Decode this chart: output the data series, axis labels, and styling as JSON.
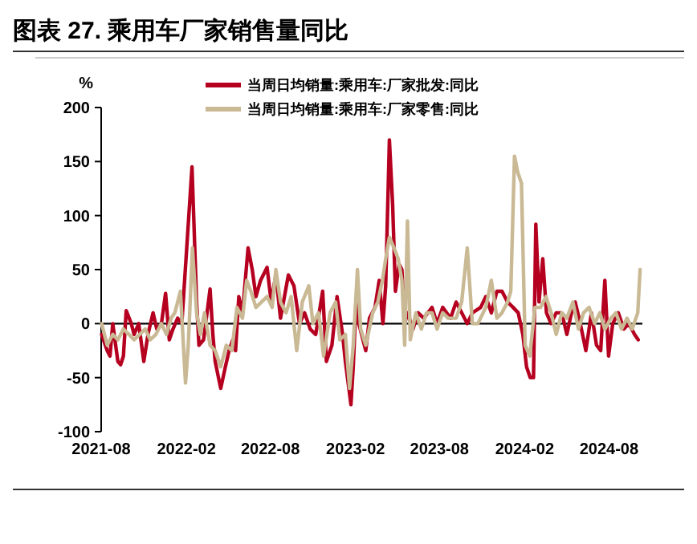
{
  "chart_data": {
    "type": "line",
    "title": "图表 27. 乘用车厂家销售量同比",
    "ylabel": "%",
    "legend": "top",
    "grid": false,
    "line_style": "solid",
    "marker": "none",
    "xlim": [
      "2021-08-01",
      "2024-10-12"
    ],
    "xticks": [
      {
        "value": "2021-08-01",
        "label": "2021-08"
      },
      {
        "value": "2022-02-01",
        "label": "2022-02"
      },
      {
        "value": "2022-08-01",
        "label": "2022-08"
      },
      {
        "value": "2023-02-01",
        "label": "2023-02"
      },
      {
        "value": "2023-08-01",
        "label": "2023-08"
      },
      {
        "value": "2024-02-01",
        "label": "2024-02"
      },
      {
        "value": "2024-08-01",
        "label": "2024-08"
      }
    ],
    "ylim": [
      -100,
      200
    ],
    "yticks": [
      -100,
      -50,
      0,
      50,
      100,
      150,
      200
    ],
    "ref_lines": [
      {
        "axis": "y",
        "value": 0,
        "color": "#000000"
      }
    ],
    "series": [
      {
        "name": "当周日均销量:乘用车:厂家批发:同比",
        "color": "#b5001f",
        "x": [
          "2021-08-02",
          "2021-08-14",
          "2021-08-20",
          "2021-08-26",
          "2021-09-06",
          "2021-09-12",
          "2021-09-18",
          "2021-09-24",
          "2021-10-05",
          "2021-10-11",
          "2021-10-21",
          "2021-11-01",
          "2021-11-10",
          "2021-11-21",
          "2021-11-29",
          "2021-12-09",
          "2021-12-18",
          "2021-12-26",
          "2022-01-03",
          "2022-01-13",
          "2022-01-22",
          "2022-02-13",
          "2022-02-23",
          "2022-02-28",
          "2022-03-10",
          "2022-03-24",
          "2022-03-30",
          "2022-04-04",
          "2022-04-16",
          "2022-04-26",
          "2022-05-04",
          "2022-05-12",
          "2022-05-18",
          "2022-05-25",
          "2022-06-02",
          "2022-06-14",
          "2022-06-23",
          "2022-07-01",
          "2022-07-11",
          "2022-07-25",
          "2022-08-03",
          "2022-08-13",
          "2022-08-23",
          "2022-09-09",
          "2022-09-21",
          "2022-10-03",
          "2022-10-14",
          "2022-10-26",
          "2022-11-07",
          "2022-11-22",
          "2022-11-30",
          "2022-12-12",
          "2022-12-23",
          "2023-01-04",
          "2023-01-10",
          "2023-01-22",
          "2023-01-27",
          "2023-02-02",
          "2023-02-08",
          "2023-02-23",
          "2023-03-03",
          "2023-03-15",
          "2023-03-24",
          "2023-04-01",
          "2023-04-07",
          "2023-04-15",
          "2023-04-22",
          "2023-04-28",
          "2023-05-06",
          "2023-05-12",
          "2023-05-18",
          "2023-05-24",
          "2023-06-05",
          "2023-06-16",
          "2023-06-28",
          "2023-07-16",
          "2023-07-27",
          "2023-08-08",
          "2023-08-25",
          "2023-09-06",
          "2023-09-18",
          "2023-09-30",
          "2023-10-11",
          "2023-10-29",
          "2023-11-09",
          "2023-11-21",
          "2023-12-03",
          "2023-12-14",
          "2023-12-26",
          "2024-01-07",
          "2024-01-18",
          "2024-01-28",
          "2024-02-05",
          "2024-02-13",
          "2024-02-20",
          "2024-02-25",
          "2024-03-03",
          "2024-03-11",
          "2024-03-19",
          "2024-03-29",
          "2024-04-09",
          "2024-04-21",
          "2024-05-02",
          "2024-05-12",
          "2024-05-20",
          "2024-05-31",
          "2024-06-12",
          "2024-06-24",
          "2024-07-05",
          "2024-07-14",
          "2024-07-23",
          "2024-07-31",
          "2024-08-09",
          "2024-08-21",
          "2024-09-02",
          "2024-09-13",
          "2024-09-25",
          "2024-10-03"
        ],
        "values": [
          -10,
          -25,
          -30,
          0,
          -35,
          -38,
          -30,
          12,
          0,
          -10,
          0,
          -35,
          -10,
          10,
          -5,
          0,
          28,
          -15,
          -5,
          5,
          0,
          145,
          20,
          -20,
          -15,
          32,
          -10,
          -35,
          -60,
          -40,
          -25,
          -15,
          -25,
          25,
          10,
          70,
          50,
          25,
          40,
          52,
          20,
          45,
          5,
          45,
          35,
          0,
          10,
          -5,
          -10,
          30,
          -35,
          -20,
          25,
          -10,
          -35,
          -75,
          -40,
          20,
          0,
          -25,
          5,
          15,
          40,
          0,
          35,
          170,
          110,
          30,
          55,
          50,
          0,
          10,
          -5,
          10,
          5,
          15,
          0,
          15,
          5,
          20,
          10,
          0,
          10,
          15,
          25,
          10,
          30,
          30,
          20,
          15,
          10,
          -10,
          -40,
          -50,
          -50,
          92,
          20,
          60,
          10,
          0,
          10,
          10,
          -10,
          10,
          20,
          0,
          -25,
          10,
          -20,
          -25,
          40,
          -30,
          0,
          10,
          -5,
          0,
          -10,
          -15
        ]
      },
      {
        "name": "当周日均销量:乘用车:厂家零售:同比",
        "color": "#c9b994",
        "x": [
          "2021-08-02",
          "2021-08-14",
          "2021-08-26",
          "2021-09-06",
          "2021-09-18",
          "2021-09-30",
          "2021-10-11",
          "2021-10-23",
          "2021-11-04",
          "2021-11-15",
          "2021-11-27",
          "2021-12-09",
          "2021-12-20",
          "2021-12-30",
          "2022-01-07",
          "2022-01-19",
          "2022-01-30",
          "2022-02-05",
          "2022-02-14",
          "2022-02-23",
          "2022-03-03",
          "2022-03-12",
          "2022-03-24",
          "2022-04-04",
          "2022-04-16",
          "2022-04-28",
          "2022-05-10",
          "2022-05-21",
          "2022-06-02",
          "2022-06-11",
          "2022-06-20",
          "2022-07-01",
          "2022-07-13",
          "2022-07-25",
          "2022-08-05",
          "2022-08-13",
          "2022-08-23",
          "2022-09-04",
          "2022-09-15",
          "2022-09-27",
          "2022-10-09",
          "2022-10-23",
          "2022-11-01",
          "2022-11-13",
          "2022-11-24",
          "2022-12-08",
          "2022-12-20",
          "2022-12-29",
          "2023-01-10",
          "2023-01-19",
          "2023-01-27",
          "2023-02-05",
          "2023-02-12",
          "2023-02-23",
          "2023-03-10",
          "2023-03-21",
          "2023-03-31",
          "2023-04-07",
          "2023-04-15",
          "2023-04-25",
          "2023-05-04",
          "2023-05-12",
          "2023-05-18",
          "2023-05-24",
          "2023-05-30",
          "2023-06-11",
          "2023-06-23",
          "2023-07-04",
          "2023-07-16",
          "2023-07-27",
          "2023-08-08",
          "2023-08-20",
          "2023-09-06",
          "2023-09-18",
          "2023-09-30",
          "2023-10-11",
          "2023-10-23",
          "2023-11-09",
          "2023-11-21",
          "2023-12-03",
          "2023-12-14",
          "2023-12-26",
          "2024-01-02",
          "2024-01-10",
          "2024-01-17",
          "2024-01-25",
          "2024-02-02",
          "2024-02-12",
          "2024-02-23",
          "2024-03-06",
          "2024-03-18",
          "2024-03-29",
          "2024-04-09",
          "2024-04-21",
          "2024-05-02",
          "2024-05-15",
          "2024-05-27",
          "2024-06-07",
          "2024-06-19",
          "2024-07-01",
          "2024-07-12",
          "2024-07-23",
          "2024-08-05",
          "2024-08-16",
          "2024-08-28",
          "2024-09-09",
          "2024-09-20",
          "2024-10-02",
          "2024-10-07"
        ],
        "values": [
          0,
          -20,
          -10,
          -15,
          -5,
          -10,
          -15,
          -10,
          -5,
          -15,
          -10,
          0,
          -10,
          5,
          10,
          30,
          -55,
          -20,
          70,
          10,
          -10,
          10,
          -20,
          -25,
          -40,
          -20,
          -25,
          15,
          5,
          40,
          30,
          15,
          20,
          25,
          15,
          50,
          20,
          10,
          25,
          -25,
          20,
          35,
          0,
          10,
          -30,
          10,
          20,
          -15,
          -10,
          -60,
          -20,
          50,
          -5,
          -20,
          10,
          20,
          40,
          60,
          80,
          70,
          60,
          40,
          -20,
          95,
          -15,
          10,
          -5,
          10,
          10,
          -5,
          10,
          5,
          5,
          20,
          70,
          0,
          0,
          15,
          40,
          5,
          10,
          20,
          30,
          155,
          140,
          130,
          -20,
          -30,
          15,
          15,
          25,
          10,
          -10,
          10,
          5,
          20,
          -5,
          10,
          15,
          0,
          10,
          -5,
          5,
          10,
          -5,
          5,
          -5,
          10,
          50
        ]
      }
    ]
  }
}
